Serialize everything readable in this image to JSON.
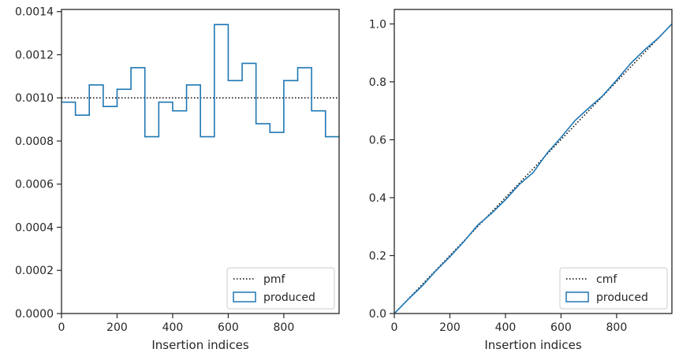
{
  "chart_data": [
    {
      "type": "line",
      "title": "",
      "xlabel": "Insertion indices",
      "ylabel": "",
      "xlim": [
        0,
        999
      ],
      "ylim": [
        0,
        0.00141
      ],
      "xticks": [
        0,
        200,
        400,
        600,
        800
      ],
      "xtick_labels": [
        "0",
        "200",
        "400",
        "600",
        "800"
      ],
      "yticks": [
        0,
        0.0002,
        0.0004,
        0.0006,
        0.0008,
        0.001,
        0.0012,
        0.0014
      ],
      "ytick_labels": [
        "0.0000",
        "0.0002",
        "0.0004",
        "0.0006",
        "0.0008",
        "0.0010",
        "0.0012",
        "0.0014"
      ],
      "legend": "lower-right",
      "grid": false,
      "series": [
        {
          "name": "pmf",
          "style": "dotted",
          "color": "#000000",
          "x": [
            0,
            999
          ],
          "y": [
            0.001,
            0.001
          ]
        },
        {
          "name": "produced",
          "style": "step",
          "color": "#1f77b4",
          "bin_edges": [
            0,
            50,
            100,
            150,
            200,
            250,
            300,
            350,
            400,
            450,
            500,
            550,
            600,
            650,
            700,
            750,
            800,
            850,
            900,
            950,
            999
          ],
          "values": [
            0.00098,
            0.00092,
            0.00106,
            0.00096,
            0.00104,
            0.00114,
            0.00082,
            0.00098,
            0.00094,
            0.00106,
            0.00082,
            0.00134,
            0.00108,
            0.00116,
            0.00088,
            0.00084,
            0.00108,
            0.00114,
            0.00094,
            0.00082
          ]
        }
      ]
    },
    {
      "type": "line",
      "title": "",
      "xlabel": "Insertion indices",
      "ylabel": "",
      "xlim": [
        0,
        999
      ],
      "ylim": [
        0,
        1.05
      ],
      "xticks": [
        0,
        200,
        400,
        600,
        800
      ],
      "xtick_labels": [
        "0",
        "200",
        "400",
        "600",
        "800"
      ],
      "yticks": [
        0,
        0.2,
        0.4,
        0.6,
        0.8,
        1.0
      ],
      "ytick_labels": [
        "0.0",
        "0.2",
        "0.4",
        "0.6",
        "0.8",
        "1.0"
      ],
      "legend": "lower-right",
      "grid": false,
      "series": [
        {
          "name": "cmf",
          "style": "dotted",
          "color": "#000000",
          "x": [
            0,
            999
          ],
          "y": [
            0,
            1
          ]
        },
        {
          "name": "produced",
          "style": "line",
          "color": "#1f77b4",
          "x": [
            0,
            50,
            100,
            150,
            200,
            250,
            300,
            350,
            400,
            450,
            500,
            550,
            600,
            650,
            700,
            750,
            800,
            850,
            900,
            950,
            999
          ],
          "y": [
            0.0,
            0.049,
            0.095,
            0.148,
            0.196,
            0.248,
            0.305,
            0.346,
            0.393,
            0.446,
            0.487,
            0.554,
            0.608,
            0.666,
            0.71,
            0.752,
            0.806,
            0.863,
            0.91,
            0.951,
            1.0
          ]
        }
      ]
    }
  ]
}
